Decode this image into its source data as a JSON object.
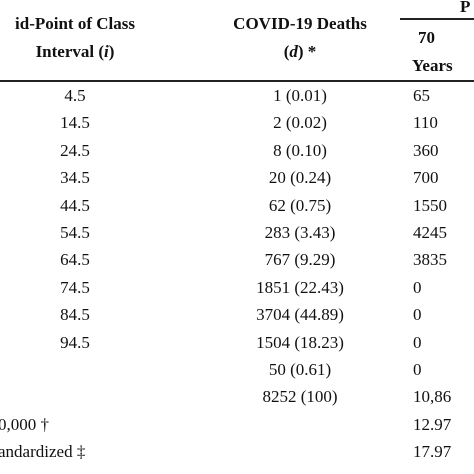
{
  "header": {
    "col1": {
      "line1": "id-Point of Class",
      "line2": {
        "pre": "Interval (",
        "ital": "i",
        "post": ")"
      }
    },
    "col2": {
      "line1": "COVID-19 Deaths",
      "line2": {
        "pre": "(",
        "ital": "d",
        "post": ") *"
      }
    },
    "col3": {
      "group": "P",
      "line1": "70",
      "line2": "Years"
    }
  },
  "table": {
    "rows": [
      {
        "mid": "4.5",
        "deaths": "1 (0.01)",
        "col3": "65"
      },
      {
        "mid": "14.5",
        "deaths": "2 (0.02)",
        "col3": "110"
      },
      {
        "mid": "24.5",
        "deaths": "8 (0.10)",
        "col3": "360"
      },
      {
        "mid": "34.5",
        "deaths": "20 (0.24)",
        "col3": "700"
      },
      {
        "mid": "44.5",
        "deaths": "62 (0.75)",
        "col3": "1550"
      },
      {
        "mid": "54.5",
        "deaths": "283 (3.43)",
        "col3": "4245"
      },
      {
        "mid": "64.5",
        "deaths": "767 (9.29)",
        "col3": "3835"
      },
      {
        "mid": "74.5",
        "deaths": "1851 (22.43)",
        "col3": "0"
      },
      {
        "mid": "84.5",
        "deaths": "3704 (44.89)",
        "col3": "0"
      },
      {
        "mid": "94.5",
        "deaths": "1504 (18.23)",
        "col3": "0"
      },
      {
        "deaths": "50 (0.61)",
        "col3": "0"
      },
      {
        "deaths": "8252 (100)",
        "col3": "10,86"
      },
      {
        "label": "0,000 †",
        "col3": "12.97"
      },
      {
        "label": "andardized ‡",
        "col3": "17.97"
      }
    ]
  }
}
